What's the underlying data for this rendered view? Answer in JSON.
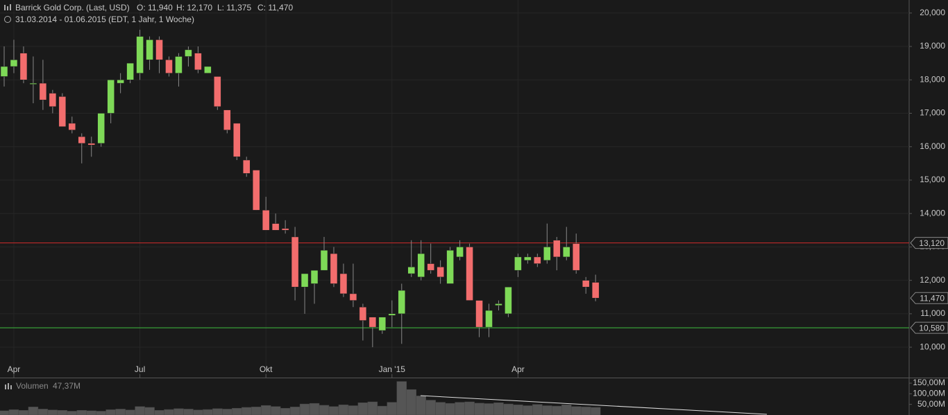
{
  "chart_data": {
    "type": "candlestick",
    "title": "Barrick Gold Corp. (Last, USD)",
    "ohlc_header": [
      "O: 11,940",
      "H: 12,170",
      "L: 11,375",
      "C: 11,470"
    ],
    "subtitle": "31.03.2014 - 01.06.2015 (EDT, 1 Jahr, 1 Woche)",
    "categories": [
      null,
      "Apr",
      null,
      null,
      null,
      null,
      null,
      null,
      null,
      null,
      null,
      null,
      null,
      null,
      "Jul",
      null,
      null,
      null,
      null,
      null,
      null,
      null,
      null,
      null,
      null,
      null,
      null,
      "Okt",
      null,
      null,
      null,
      null,
      null,
      null,
      null,
      null,
      null,
      null,
      null,
      null,
      "Jan '15",
      null,
      null,
      null,
      null,
      null,
      null,
      null,
      null,
      null,
      null,
      null,
      null,
      "Apr",
      null,
      null,
      null,
      null,
      null,
      null,
      null,
      null
    ],
    "open": [
      18100,
      18400,
      18800,
      17900,
      17900,
      17600,
      17500,
      16700,
      16300,
      16100,
      16100,
      17000,
      17900,
      18000,
      18200,
      18600,
      19200,
      18600,
      18200,
      18700,
      18800,
      18200,
      18100,
      17100,
      16700,
      15600,
      15300,
      14100,
      13700,
      13550,
      13300,
      11800,
      11900,
      12300,
      12800,
      12200,
      11600,
      11200,
      10900,
      10500,
      10950,
      11000,
      12200,
      12100,
      12500,
      12400,
      11900,
      12700,
      13000,
      11400,
      10600,
      11250,
      11000,
      12300,
      12600,
      12700,
      12600,
      13200,
      12700,
      13100,
      12000,
      11940
    ],
    "high": [
      19000,
      19200,
      19000,
      18700,
      18600,
      17700,
      17600,
      16900,
      16400,
      16300,
      17000,
      18000,
      18200,
      18500,
      19500,
      19300,
      19300,
      18700,
      18800,
      19000,
      19000,
      18400,
      18100,
      17100,
      16700,
      15700,
      15300,
      14500,
      14000,
      13800,
      13600,
      12200,
      12300,
      13300,
      13000,
      12500,
      12500,
      11300,
      10900,
      10900,
      11400,
      11900,
      13200,
      13200,
      13100,
      12600,
      13000,
      13200,
      13100,
      11400,
      11300,
      11400,
      11800,
      12800,
      12800,
      12800,
      13700,
      13300,
      13600,
      13400,
      12100,
      12170
    ],
    "low": [
      17800,
      18200,
      17900,
      17300,
      17100,
      17000,
      16600,
      16400,
      15500,
      15700,
      16000,
      16700,
      17600,
      17900,
      18000,
      18300,
      18200,
      18100,
      17800,
      18400,
      18200,
      18200,
      17100,
      16400,
      15600,
      15100,
      14100,
      13500,
      13500,
      13400,
      11400,
      11000,
      11300,
      12300,
      11800,
      11500,
      11200,
      10200,
      10000,
      10400,
      10600,
      10100,
      12100,
      12000,
      12200,
      11900,
      11900,
      12600,
      11400,
      10300,
      10300,
      11100,
      10900,
      12100,
      12500,
      12400,
      12500,
      12300,
      12600,
      12200,
      11600,
      11375
    ],
    "close": [
      18400,
      18600,
      18000,
      17900,
      17400,
      17200,
      16600,
      16500,
      16100,
      16050,
      17000,
      18000,
      18000,
      18500,
      19300,
      19200,
      18600,
      18200,
      18700,
      18900,
      18300,
      18400,
      17200,
      16500,
      15700,
      15200,
      14100,
      13500,
      13500,
      13500,
      11800,
      12200,
      12300,
      12900,
      11900,
      11600,
      11400,
      10800,
      10600,
      10900,
      11000,
      11700,
      12400,
      12800,
      12300,
      12100,
      12900,
      13000,
      11400,
      10600,
      11100,
      11300,
      11800,
      12700,
      12700,
      12500,
      13000,
      12700,
      13000,
      12300,
      11800,
      11470
    ],
    "up_color": "#7ed957",
    "down_color": "#f26d6d",
    "ylim": [
      9090,
      20390
    ],
    "yticks": [
      {
        "value": 10000,
        "label": "10,000"
      },
      {
        "value": 11000,
        "label": "11,000"
      },
      {
        "value": 12000,
        "label": "12,000"
      },
      {
        "value": 13000,
        "label": "13,000"
      },
      {
        "value": 14000,
        "label": "14,000"
      },
      {
        "value": 15000,
        "label": "15,000"
      },
      {
        "value": 16000,
        "label": "16,000"
      },
      {
        "value": 17000,
        "label": "17,000"
      },
      {
        "value": 18000,
        "label": "18,000"
      },
      {
        "value": 19000,
        "label": "19,000"
      },
      {
        "value": 20000,
        "label": "20,000"
      }
    ],
    "grid": true,
    "levels": [
      {
        "value": 13120,
        "label": "13,120",
        "color": "#d42a2a"
      },
      {
        "value": 10580,
        "label": "10,580",
        "color": "#3fbf3f"
      }
    ],
    "last": {
      "value": 11470,
      "label": "11,470"
    },
    "volume": {
      "name": "Volumen",
      "value_label": "47,37M",
      "color": "#555555",
      "values": [
        20,
        25,
        22,
        38,
        28,
        24,
        22,
        18,
        22,
        20,
        18,
        25,
        28,
        24,
        40,
        36,
        22,
        26,
        30,
        28,
        24,
        26,
        30,
        28,
        32,
        36,
        38,
        45,
        40,
        32,
        38,
        52,
        55,
        46,
        40,
        48,
        44,
        58,
        62,
        42,
        60,
        158,
        120,
        90,
        70,
        60,
        55,
        60,
        62,
        56,
        54,
        58,
        52,
        48,
        44,
        50,
        44,
        42,
        48,
        40,
        38,
        36
      ],
      "ylim": [
        0,
        173
      ],
      "yticks": [
        {
          "value": 50,
          "label": "50,00M"
        },
        {
          "value": 100,
          "label": "100,00M"
        },
        {
          "value": 150,
          "label": "150,00M"
        }
      ]
    }
  }
}
